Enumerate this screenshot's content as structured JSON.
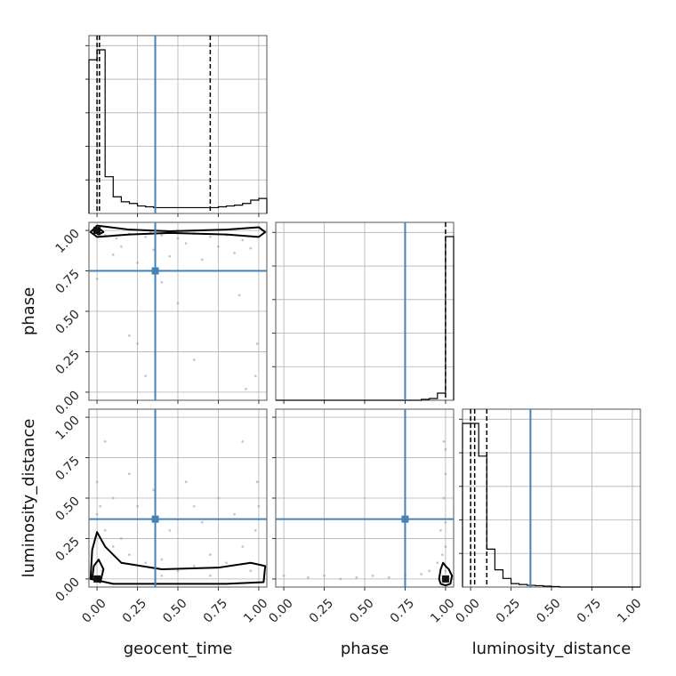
{
  "chart_data": {
    "type": "corner",
    "parameters": [
      "geocent_time",
      "phase",
      "luminosity_distance"
    ],
    "range": [
      -0.05,
      1.05
    ],
    "ticks": [
      0.0,
      0.25,
      0.5,
      0.75,
      1.0
    ],
    "tick_labels": [
      "0.00",
      "0.25",
      "0.50",
      "0.75",
      "1.00"
    ],
    "grid": true,
    "truth_color": "#4682b4",
    "hist_color": "#000000",
    "truths": {
      "geocent_time": 0.36,
      "phase": 0.75,
      "luminosity_distance": 0.37
    },
    "quantiles": {
      "geocent_time": [
        0.0,
        0.015,
        0.7
      ],
      "phase": [
        1.0
      ],
      "luminosity_distance": [
        0.0,
        0.025,
        0.1
      ]
    },
    "histograms": {
      "geocent_time": {
        "bin_edges": [
          -0.05,
          0.0,
          0.05,
          0.1,
          0.15,
          0.2,
          0.25,
          0.3,
          0.35,
          0.4,
          0.45,
          0.5,
          0.55,
          0.6,
          0.65,
          0.7,
          0.75,
          0.8,
          0.85,
          0.9,
          0.95,
          1.0,
          1.05
        ],
        "counts": [
          0.92,
          0.98,
          0.22,
          0.1,
          0.07,
          0.06,
          0.045,
          0.04,
          0.035,
          0.035,
          0.035,
          0.035,
          0.035,
          0.035,
          0.035,
          0.035,
          0.04,
          0.045,
          0.05,
          0.06,
          0.08,
          0.09
        ]
      },
      "phase": {
        "bin_edges": [
          -0.05,
          0.0,
          0.05,
          0.1,
          0.15,
          0.2,
          0.25,
          0.3,
          0.35,
          0.4,
          0.45,
          0.5,
          0.55,
          0.6,
          0.65,
          0.7,
          0.75,
          0.8,
          0.85,
          0.9,
          0.95,
          1.0,
          1.05
        ],
        "counts": [
          0.0,
          0.0,
          0.0,
          0.0,
          0.0,
          0.0,
          0.0,
          0.0,
          0.0,
          0.0,
          0.0,
          0.0,
          0.0,
          0.0,
          0.0,
          0.0,
          0.0,
          0.0,
          0.005,
          0.01,
          0.04,
          0.92
        ]
      },
      "luminosity_distance": {
        "bin_edges": [
          -0.05,
          0.0,
          0.05,
          0.1,
          0.15,
          0.2,
          0.25,
          0.3,
          0.35,
          0.4,
          0.45,
          0.5,
          0.55,
          0.6,
          0.65,
          0.7,
          0.75,
          0.8,
          0.85,
          0.9,
          0.95,
          1.0,
          1.05
        ],
        "counts": [
          0.95,
          0.95,
          0.76,
          0.22,
          0.1,
          0.05,
          0.02,
          0.015,
          0.01,
          0.008,
          0.005,
          0.003,
          0.0,
          0.0,
          0.0,
          0.0,
          0.0,
          0.0,
          0.0,
          0.0,
          0.0,
          0.0
        ]
      }
    },
    "scatter_samples": {
      "phase_vs_geocent_time": [
        [
          0.05,
          0.97
        ],
        [
          0.12,
          0.95
        ],
        [
          0.2,
          0.98
        ],
        [
          0.3,
          0.96
        ],
        [
          0.4,
          0.97
        ],
        [
          0.5,
          0.95
        ],
        [
          0.6,
          0.98
        ],
        [
          0.7,
          0.96
        ],
        [
          0.8,
          0.97
        ],
        [
          0.9,
          0.94
        ],
        [
          0.15,
          0.9
        ],
        [
          0.35,
          0.88
        ],
        [
          0.55,
          0.92
        ],
        [
          0.75,
          0.9
        ],
        [
          0.95,
          0.89
        ],
        [
          0.1,
          0.85
        ],
        [
          0.45,
          0.84
        ],
        [
          0.85,
          0.86
        ],
        [
          0.25,
          0.8
        ],
        [
          0.65,
          0.82
        ],
        [
          0.0,
          0.7
        ],
        [
          0.2,
          0.35
        ],
        [
          0.25,
          0.3
        ],
        [
          0.5,
          0.55
        ],
        [
          0.4,
          0.68
        ],
        [
          0.88,
          0.6
        ],
        [
          0.99,
          0.3
        ],
        [
          0.98,
          0.1
        ],
        [
          0.92,
          0.02
        ],
        [
          0.3,
          0.1
        ],
        [
          0.6,
          0.2
        ],
        [
          0.02,
          0.97
        ],
        [
          0.97,
          0.96
        ],
        [
          0.5,
          1.0
        ],
        [
          0.33,
          0.99
        ]
      ],
      "luminosity_distance_vs_geocent_time": [
        [
          0.0,
          0.6
        ],
        [
          0.02,
          0.45
        ],
        [
          0.0,
          0.4
        ],
        [
          0.05,
          0.3
        ],
        [
          0.1,
          0.2
        ],
        [
          0.15,
          0.25
        ],
        [
          0.2,
          0.15
        ],
        [
          0.3,
          0.1
        ],
        [
          0.4,
          0.12
        ],
        [
          0.5,
          0.05
        ],
        [
          0.6,
          0.08
        ],
        [
          0.7,
          0.15
        ],
        [
          0.8,
          0.1
        ],
        [
          0.9,
          0.2
        ],
        [
          0.98,
          0.3
        ],
        [
          1.0,
          0.45
        ],
        [
          0.99,
          0.6
        ],
        [
          0.25,
          0.45
        ],
        [
          0.45,
          0.3
        ],
        [
          0.65,
          0.35
        ],
        [
          0.85,
          0.4
        ],
        [
          0.35,
          0.55
        ],
        [
          0.55,
          0.6
        ],
        [
          0.05,
          0.85
        ],
        [
          0.9,
          0.85
        ],
        [
          0.75,
          0.5
        ],
        [
          0.1,
          0.5
        ],
        [
          0.6,
          0.45
        ],
        [
          0.2,
          0.65
        ],
        [
          0.95,
          0.05
        ],
        [
          0.03,
          0.05
        ],
        [
          0.4,
          0.02
        ],
        [
          0.7,
          0.02
        ]
      ],
      "luminosity_distance_vs_phase": [
        [
          0.0,
          0.02
        ],
        [
          0.15,
          0.01
        ],
        [
          0.25,
          0.02
        ],
        [
          0.35,
          0.0
        ],
        [
          0.45,
          0.01
        ],
        [
          0.55,
          0.02
        ],
        [
          0.65,
          0.01
        ],
        [
          0.75,
          0.02
        ],
        [
          0.85,
          0.03
        ],
        [
          0.9,
          0.05
        ],
        [
          0.95,
          0.1
        ],
        [
          1.0,
          0.2
        ],
        [
          1.0,
          0.35
        ],
        [
          0.99,
          0.5
        ],
        [
          1.0,
          0.65
        ],
        [
          1.0,
          0.8
        ],
        [
          0.98,
          0.15
        ],
        [
          1.0,
          0.05
        ],
        [
          0.97,
          0.3
        ],
        [
          0.99,
          0.85
        ]
      ]
    },
    "contours": {
      "phase_vs_geocent_time": [
        [
          [
            -0.04,
            0.99
          ],
          [
            0.0,
            0.96
          ],
          [
            0.2,
            0.975
          ],
          [
            0.45,
            0.985
          ],
          [
            0.8,
            0.975
          ],
          [
            1.0,
            0.96
          ],
          [
            1.04,
            0.99
          ],
          [
            1.0,
            1.02
          ],
          [
            0.8,
            1.005
          ],
          [
            0.45,
            0.995
          ],
          [
            0.2,
            1.005
          ],
          [
            0.0,
            1.03
          ]
        ],
        [
          [
            -0.02,
            0.995
          ],
          [
            0.01,
            0.975
          ],
          [
            0.04,
            0.99
          ],
          [
            0.01,
            1.015
          ]
        ]
      ],
      "luminosity_distance_vs_geocent_time": [
        [
          [
            -0.04,
            0.0
          ],
          [
            -0.03,
            0.18
          ],
          [
            0.0,
            0.29
          ],
          [
            0.05,
            0.2
          ],
          [
            0.15,
            0.1
          ],
          [
            0.4,
            0.06
          ],
          [
            0.75,
            0.07
          ],
          [
            0.95,
            0.1
          ],
          [
            1.04,
            0.08
          ],
          [
            1.03,
            -0.02
          ],
          [
            0.8,
            -0.03
          ],
          [
            0.4,
            -0.03
          ],
          [
            0.1,
            -0.03
          ]
        ],
        [
          [
            -0.03,
            0.0
          ],
          [
            -0.02,
            0.08
          ],
          [
            0.01,
            0.12
          ],
          [
            0.04,
            0.06
          ],
          [
            0.02,
            -0.02
          ]
        ]
      ],
      "luminosity_distance_vs_phase": [
        [
          [
            0.96,
            0.0
          ],
          [
            0.97,
            0.06
          ],
          [
            0.985,
            0.1
          ],
          [
            1.0,
            0.08
          ],
          [
            1.02,
            0.06
          ],
          [
            1.04,
            0.02
          ],
          [
            1.03,
            -0.03
          ],
          [
            1.0,
            -0.04
          ],
          [
            0.97,
            -0.03
          ]
        ]
      ]
    },
    "density_peaks": {
      "phase_vs_geocent_time": [
        [
          0.0,
          1.0
        ]
      ],
      "luminosity_distance_vs_geocent_time": [
        [
          0.0,
          0.0
        ]
      ],
      "luminosity_distance_vs_phase": [
        [
          1.0,
          0.0
        ]
      ]
    }
  }
}
